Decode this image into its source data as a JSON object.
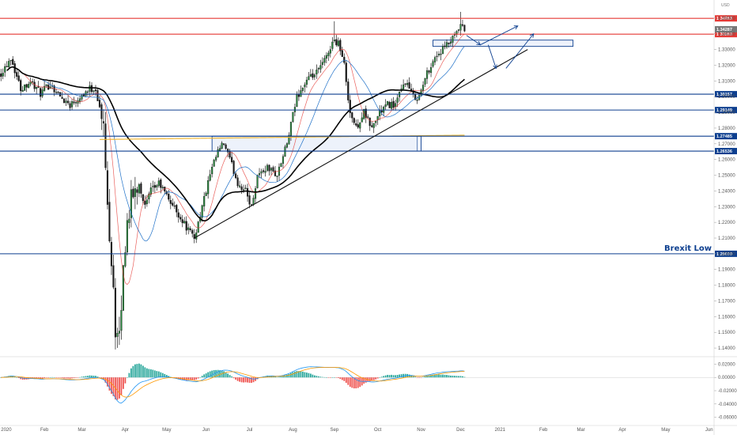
{
  "chart_data": {
    "type": "candlestick",
    "currency_label": "USD",
    "price_axis": {
      "min": 1.135,
      "max": 1.3575,
      "ticks": [
        "1.35000",
        "1.34000",
        "1.33000",
        "1.32000",
        "1.31000",
        "1.30000",
        "1.29000",
        "1.28000",
        "1.27000",
        "1.26000",
        "1.25000",
        "1.24000",
        "1.23000",
        "1.22000",
        "1.21000",
        "1.20000",
        "1.19000",
        "1.18000",
        "1.17000",
        "1.16000",
        "1.15000",
        "1.14000"
      ]
    },
    "time_axis": {
      "ticks": [
        {
          "label": "2020",
          "index": 0
        },
        {
          "label": "Feb",
          "index": 22
        },
        {
          "label": "Mar",
          "index": 41
        },
        {
          "label": "Apr",
          "index": 63
        },
        {
          "label": "May",
          "index": 84
        },
        {
          "label": "Jun",
          "index": 104
        },
        {
          "label": "Jul",
          "index": 126
        },
        {
          "label": "Aug",
          "index": 148
        },
        {
          "label": "Sep",
          "index": 169
        },
        {
          "label": "Oct",
          "index": 191
        },
        {
          "label": "Nov",
          "index": 213
        },
        {
          "label": "Dec",
          "index": 233
        },
        {
          "label": "2021",
          "index": 253
        },
        {
          "label": "Feb",
          "index": 275
        },
        {
          "label": "Mar",
          "index": 294
        },
        {
          "label": "Apr",
          "index": 315
        },
        {
          "label": "May",
          "index": 337
        },
        {
          "label": "Jun",
          "index": 359
        }
      ]
    },
    "price_path_keypoints": [
      [
        0,
        1.315
      ],
      [
        5,
        1.325
      ],
      [
        10,
        1.305
      ],
      [
        15,
        1.31
      ],
      [
        20,
        1.302
      ],
      [
        25,
        1.308
      ],
      [
        30,
        1.3
      ],
      [
        35,
        1.295
      ],
      [
        40,
        1.3
      ],
      [
        45,
        1.305
      ],
      [
        48,
        1.305
      ],
      [
        52,
        1.28
      ],
      [
        54,
        1.23
      ],
      [
        57,
        1.18
      ],
      [
        58,
        1.15
      ],
      [
        60,
        1.145
      ],
      [
        62,
        1.19
      ],
      [
        64,
        1.22
      ],
      [
        66,
        1.235
      ],
      [
        70,
        1.245
      ],
      [
        73,
        1.23
      ],
      [
        76,
        1.24
      ],
      [
        80,
        1.245
      ],
      [
        85,
        1.235
      ],
      [
        90,
        1.225
      ],
      [
        95,
        1.215
      ],
      [
        98,
        1.21
      ],
      [
        102,
        1.23
      ],
      [
        106,
        1.25
      ],
      [
        110,
        1.265
      ],
      [
        113,
        1.27
      ],
      [
        116,
        1.26
      ],
      [
        120,
        1.245
      ],
      [
        124,
        1.24
      ],
      [
        127,
        1.23
      ],
      [
        130,
        1.25
      ],
      [
        135,
        1.255
      ],
      [
        140,
        1.25
      ],
      [
        145,
        1.27
      ],
      [
        150,
        1.3
      ],
      [
        155,
        1.31
      ],
      [
        160,
        1.315
      ],
      [
        165,
        1.325
      ],
      [
        168,
        1.335
      ],
      [
        171,
        1.335
      ],
      [
        174,
        1.32
      ],
      [
        177,
        1.29
      ],
      [
        180,
        1.28
      ],
      [
        184,
        1.29
      ],
      [
        188,
        1.28
      ],
      [
        192,
        1.29
      ],
      [
        196,
        1.295
      ],
      [
        200,
        1.295
      ],
      [
        205,
        1.31
      ],
      [
        209,
        1.3
      ],
      [
        212,
        1.3
      ],
      [
        216,
        1.315
      ],
      [
        220,
        1.325
      ],
      [
        224,
        1.33
      ],
      [
        228,
        1.335
      ],
      [
        231,
        1.34
      ],
      [
        233,
        1.345
      ],
      [
        235,
        1.342
      ]
    ],
    "moving_averages": [
      {
        "color": "#e53935",
        "period": 10
      },
      {
        "color": "#1e70c8",
        "period": 20
      },
      {
        "color": "#000000",
        "period": 50
      },
      {
        "color": "#f0b429",
        "period": 200
      }
    ],
    "horizontal_levels": [
      {
        "price": 1.34983,
        "label": "1.34983",
        "color": "#e53935"
      },
      {
        "price": 1.3398,
        "label": "1.33980",
        "color": "#e53935"
      },
      {
        "price": 1.30157,
        "label": "1.30157",
        "color": "#0d3f8f"
      },
      {
        "price": 1.29149,
        "label": "1.29149",
        "color": "#0d3f8f"
      },
      {
        "price": 1.27485,
        "label": "1.27485",
        "color": "#0d3f8f"
      },
      {
        "price": 1.26536,
        "label": "1.26536",
        "color": "#0d3f8f"
      },
      {
        "price": 1.2,
        "label": "1.20000",
        "color": "#0d3f8f"
      }
    ],
    "current_price_labels": [
      {
        "price": 1.34287,
        "label": "1.34287",
        "color": "#777777"
      }
    ],
    "annotations": [
      {
        "text": "Brexit Low",
        "price": 1.2
      }
    ],
    "zones": [
      {
        "x0": 107,
        "x1": 213,
        "p_top": 1.27485,
        "p_bot": 1.26536
      },
      {
        "x0": 219,
        "x1": 290,
        "p_top": 1.336,
        "p_bot": 1.332
      }
    ],
    "trendline": {
      "x0": 98,
      "p0": 1.21,
      "x1": 267,
      "p1": 1.33
    },
    "projection_arrows": [
      {
        "points": [
          [
            236,
            1.339
          ],
          [
            243,
            1.333
          ]
        ],
        "head": "down"
      },
      {
        "points": [
          [
            243,
            1.333
          ],
          [
            262,
            1.345
          ]
        ],
        "head": "up"
      },
      {
        "points": [
          [
            247,
            1.333
          ],
          [
            251,
            1.318
          ]
        ],
        "head": "down"
      },
      {
        "points": [
          [
            256,
            1.318
          ],
          [
            270,
            1.34
          ]
        ],
        "head": "up"
      }
    ],
    "macd": {
      "y_ticks": [
        {
          "label": "0.02000",
          "value": 0.02
        },
        {
          "label": "0.00000",
          "value": 0
        },
        {
          "label": "-0.02000",
          "value": -0.02
        },
        {
          "label": "-0.04000",
          "value": -0.04
        },
        {
          "label": "-0.06000",
          "value": -0.06
        }
      ],
      "range": [
        -0.07,
        0.03
      ],
      "colors": {
        "macd": "#2196f3",
        "signal": "#ff9800",
        "hist_pos": "#26a69a",
        "hist_neg": "#ef5350"
      }
    }
  }
}
